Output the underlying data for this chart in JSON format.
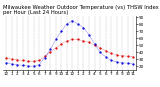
{
  "title": "Milwaukee Weather Outdoor Temperature (vs) THSW Index per Hour (Last 24 Hours)",
  "hours": [
    0,
    1,
    2,
    3,
    4,
    5,
    6,
    7,
    8,
    9,
    10,
    11,
    12,
    13,
    14,
    15,
    16,
    17,
    18,
    19,
    20,
    21,
    22,
    23
  ],
  "temp": [
    32,
    30,
    29,
    28,
    27,
    27,
    28,
    34,
    40,
    46,
    52,
    56,
    58,
    58,
    56,
    54,
    50,
    46,
    42,
    38,
    36,
    35,
    34,
    33
  ],
  "thsw": [
    25,
    23,
    22,
    21,
    20,
    20,
    22,
    32,
    44,
    58,
    70,
    80,
    85,
    80,
    75,
    65,
    52,
    40,
    33,
    28,
    26,
    25,
    24,
    23
  ],
  "temp_color": "#dd0000",
  "thsw_color": "#0000dd",
  "bg_color": "#ffffff",
  "grid_color": "#999999",
  "ytick_labels": [
    "",
    "",
    "",
    "",
    "",
    "",
    "",
    "",
    "",
    ""
  ],
  "ylim": [
    15,
    92
  ],
  "xlim": [
    -0.5,
    23.5
  ],
  "title_fontsize": 3.8,
  "tick_fontsize": 3.0,
  "linewidth": 0.7,
  "markersize": 1.2,
  "x_tick_every": 1,
  "xtick_labels": [
    "12",
    "1",
    "2",
    "3",
    "4",
    "5",
    "6",
    "7",
    "8",
    "9",
    "10",
    "11",
    "12",
    "1",
    "2",
    "3",
    "4",
    "5",
    "6",
    "7",
    "8",
    "9",
    "10",
    "11"
  ]
}
